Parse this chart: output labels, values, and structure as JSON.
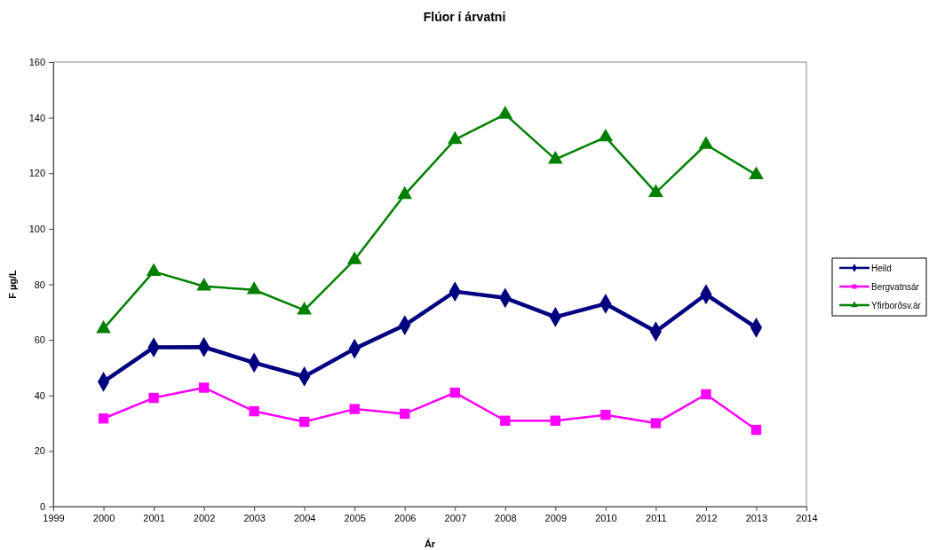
{
  "chart_data": {
    "type": "line",
    "title": "Flúor í árvatni",
    "xlabel": "Ár",
    "ylabel": "F µg/L",
    "x": [
      2000,
      2001,
      2002,
      2003,
      2004,
      2005,
      2006,
      2007,
      2008,
      2009,
      2010,
      2011,
      2012,
      2013
    ],
    "xlim": [
      1999,
      2014
    ],
    "xticks": [
      1999,
      2000,
      2001,
      2002,
      2003,
      2004,
      2005,
      2006,
      2007,
      2008,
      2009,
      2010,
      2011,
      2012,
      2013,
      2014
    ],
    "ylim": [
      0,
      160
    ],
    "yticks": [
      0,
      20,
      40,
      60,
      80,
      100,
      120,
      140,
      160
    ],
    "grid": false,
    "legend": "right",
    "series": [
      {
        "name": "Heild",
        "color": "#000080",
        "marker": "diamond",
        "values": [
          44.9,
          57.3,
          57.4,
          51.8,
          46.8,
          56.8,
          65.3,
          77.4,
          75.1,
          68.2,
          73,
          63,
          76.4,
          64.4
        ]
      },
      {
        "name": "Bergvatnsár",
        "color": "#ff00ff",
        "marker": "square",
        "values": [
          31.7,
          39.1,
          42.8,
          34.3,
          30.5,
          35.1,
          33.4,
          41,
          30.9,
          30.9,
          33,
          30,
          40.4,
          27.6
        ]
      },
      {
        "name": "Yfirborðsv.ár",
        "color": "#008000",
        "marker": "triangle",
        "values": [
          64,
          84.6,
          79.3,
          78,
          70.7,
          88.8,
          112.3,
          132.1,
          141.2,
          125,
          133,
          113,
          130.3,
          119.4
        ]
      }
    ]
  }
}
